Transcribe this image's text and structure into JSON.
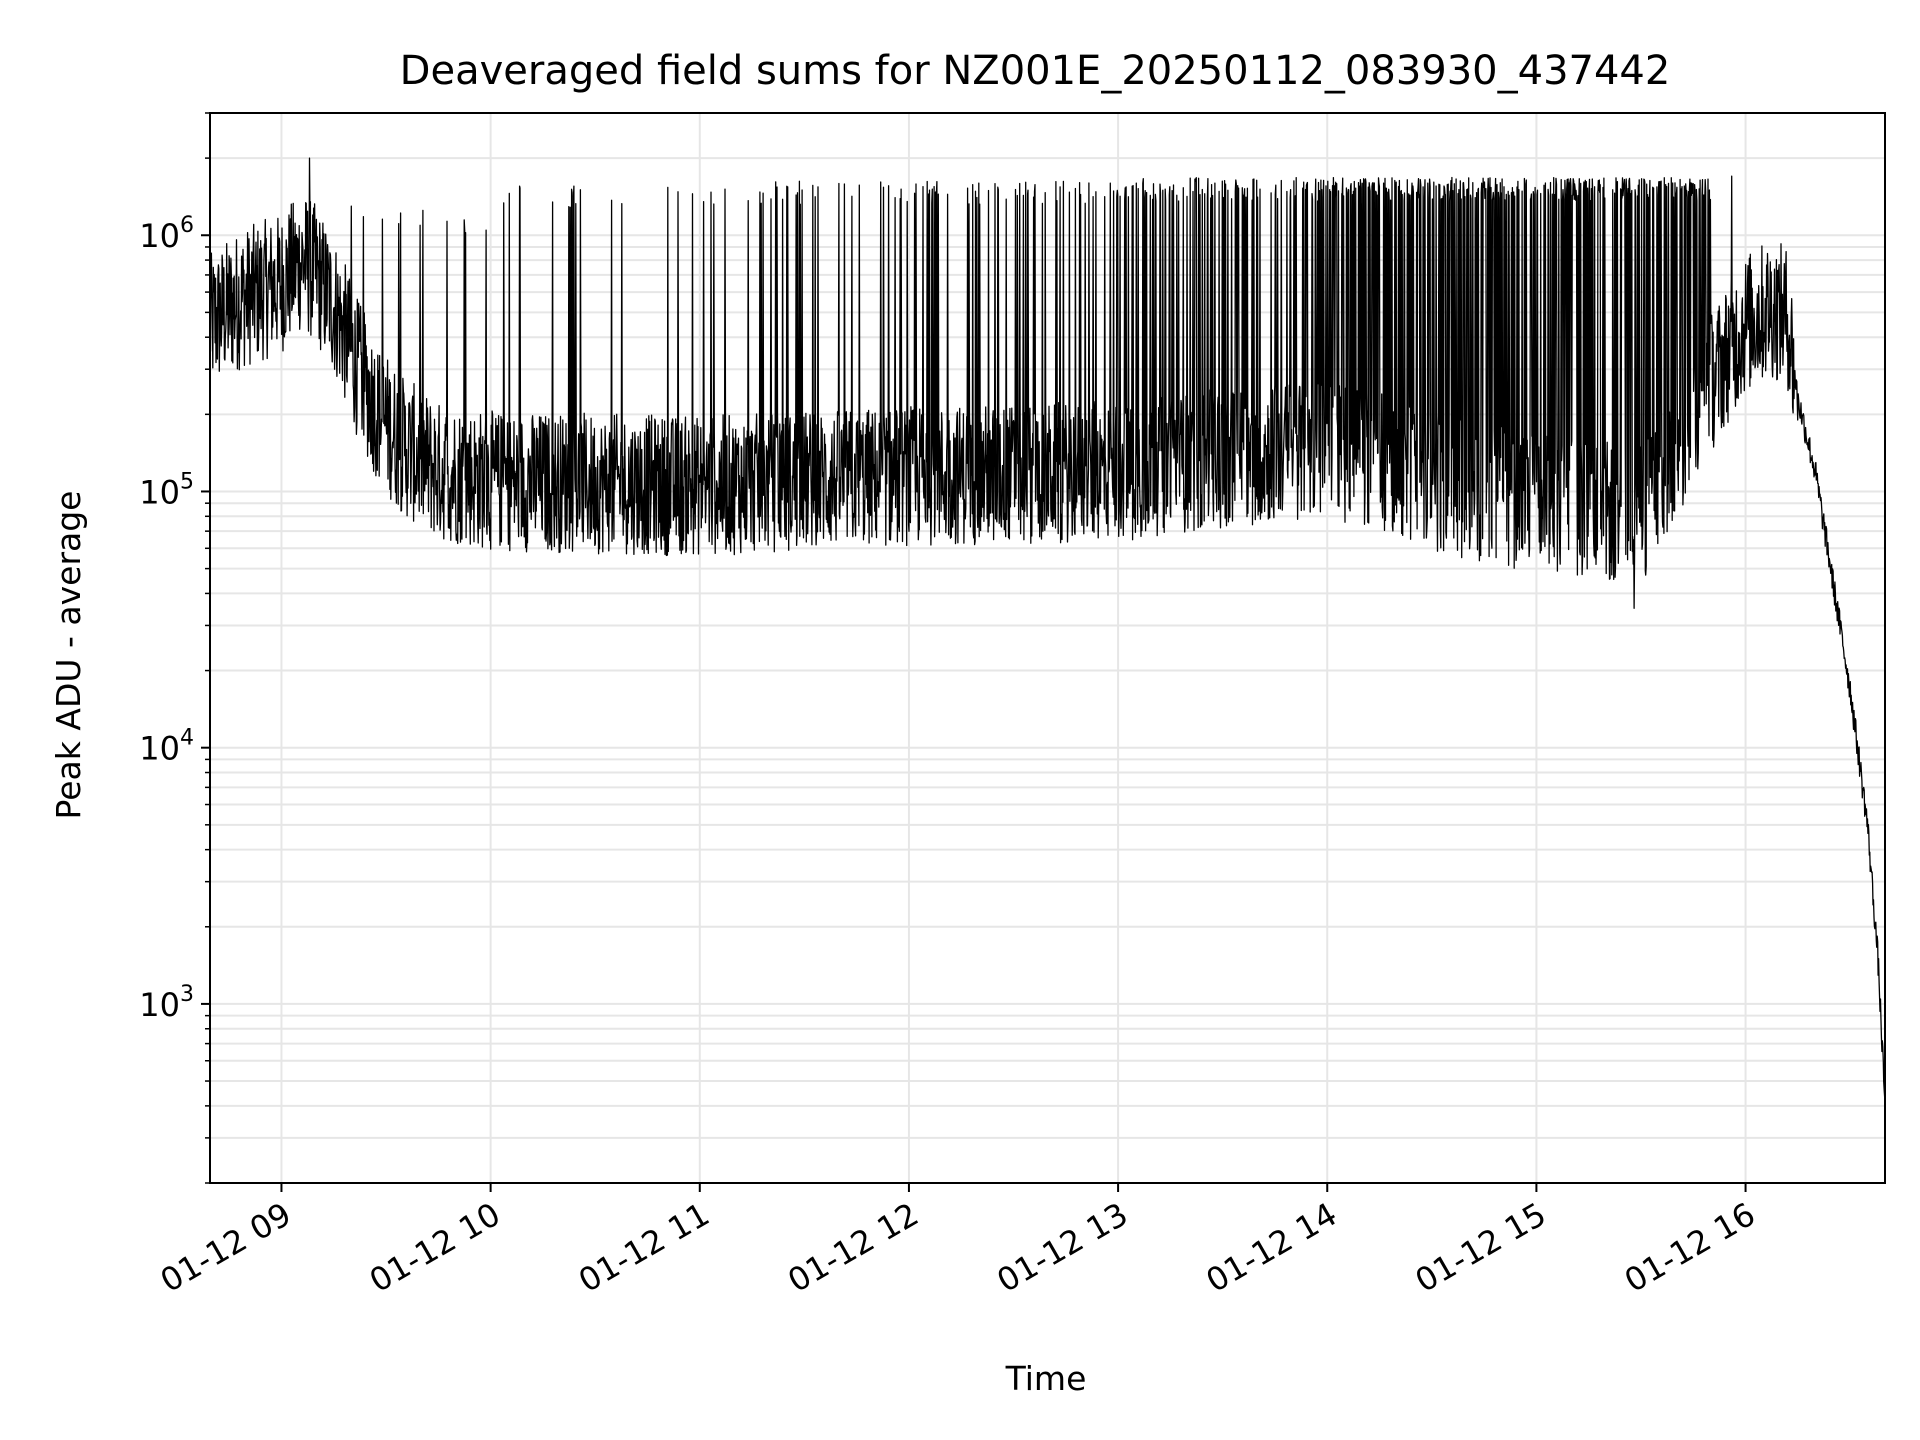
{
  "chart_data": {
    "type": "line",
    "title": "Deaveraged field sums for NZ001E_20250112_083930_437442",
    "xlabel": "Time",
    "ylabel": "Peak ADU - average",
    "yscale": "log",
    "ylim": [
      200,
      3000000
    ],
    "xlim": [
      "2025-01-12 08:39:30",
      "2025-01-12 16:40:00"
    ],
    "grid": true,
    "color": "#000000",
    "x_ticks": [
      {
        "value": "2025-01-12 09:00",
        "label": "01-12 09"
      },
      {
        "value": "2025-01-12 10:00",
        "label": "01-12 10"
      },
      {
        "value": "2025-01-12 11:00",
        "label": "01-12 11"
      },
      {
        "value": "2025-01-12 12:00",
        "label": "01-12 12"
      },
      {
        "value": "2025-01-12 13:00",
        "label": "01-12 13"
      },
      {
        "value": "2025-01-12 14:00",
        "label": "01-12 14"
      },
      {
        "value": "2025-01-12 15:00",
        "label": "01-12 15"
      },
      {
        "value": "2025-01-12 16:00",
        "label": "01-12 16"
      }
    ],
    "y_ticks": [
      {
        "value": 1000,
        "base": "10",
        "exp": "3"
      },
      {
        "value": 10000,
        "base": "10",
        "exp": "4"
      },
      {
        "value": 100000,
        "base": "10",
        "exp": "5"
      },
      {
        "value": 1000000,
        "base": "10",
        "exp": "6"
      }
    ],
    "baseline": [
      [
        "2025-01-12 08:39:30",
        450000
      ],
      [
        "2025-01-12 08:48",
        560000
      ],
      [
        "2025-01-12 09:00",
        650000
      ],
      [
        "2025-01-12 09:06",
        800000
      ],
      [
        "2025-01-12 09:10",
        700000
      ],
      [
        "2025-01-12 09:16",
        500000
      ],
      [
        "2025-01-12 09:22",
        300000
      ],
      [
        "2025-01-12 09:28",
        200000
      ],
      [
        "2025-01-12 09:35",
        150000
      ],
      [
        "2025-01-12 09:45",
        120000
      ],
      [
        "2025-01-12 10:00",
        110000
      ],
      [
        "2025-01-12 11:00",
        105000
      ],
      [
        "2025-01-12 12:00",
        115000
      ],
      [
        "2025-01-12 13:00",
        120000
      ],
      [
        "2025-01-12 13:40",
        140000
      ],
      [
        "2025-01-12 14:00",
        150000
      ],
      [
        "2025-01-12 14:30",
        110000
      ],
      [
        "2025-01-12 15:00",
        90000
      ],
      [
        "2025-01-12 15:30",
        80000
      ],
      [
        "2025-01-12 15:45",
        200000
      ],
      [
        "2025-01-12 15:55",
        350000
      ],
      [
        "2025-01-12 16:00",
        450000
      ],
      [
        "2025-01-12 16:07",
        520000
      ],
      [
        "2025-01-12 16:12",
        480000
      ],
      [
        "2025-01-12 16:15",
        230000
      ],
      [
        "2025-01-12 16:20",
        120000
      ],
      [
        "2025-01-12 16:25",
        45000
      ],
      [
        "2025-01-12 16:30",
        17000
      ],
      [
        "2025-01-12 16:35",
        5000
      ],
      [
        "2025-01-12 16:38",
        1500
      ],
      [
        "2025-01-12 16:40",
        400
      ]
    ],
    "spike_intervals": [
      {
        "start": "2025-01-12 09:23",
        "end": "2025-01-12 10:00",
        "spikes_per_hour": 15,
        "peak": 1200000
      },
      {
        "start": "2025-01-12 10:00",
        "end": "2025-01-12 11:00",
        "spikes_per_hour": 20,
        "peak": 1500000
      },
      {
        "start": "2025-01-12 11:00",
        "end": "2025-01-12 12:00",
        "spikes_per_hour": 35,
        "peak": 1550000
      },
      {
        "start": "2025-01-12 12:00",
        "end": "2025-01-12 13:00",
        "spikes_per_hour": 70,
        "peak": 1550000
      },
      {
        "start": "2025-01-12 13:00",
        "end": "2025-01-12 14:00",
        "spikes_per_hour": 100,
        "peak": 1600000
      },
      {
        "start": "2025-01-12 14:00",
        "end": "2025-01-12 15:00",
        "spikes_per_hour": 170,
        "peak": 1600000
      },
      {
        "start": "2025-01-12 15:00",
        "end": "2025-01-12 15:50",
        "spikes_per_hour": 170,
        "peak": 1600000
      }
    ],
    "notable_points": [
      [
        "2025-01-12 09:08",
        2000000
      ],
      [
        "2025-01-12 09:20",
        1300000
      ],
      [
        "2025-01-12 15:56",
        1700000
      ],
      [
        "2025-01-12 16:15",
        190000
      ],
      [
        "2025-01-12 15:28",
        35000
      ]
    ]
  }
}
